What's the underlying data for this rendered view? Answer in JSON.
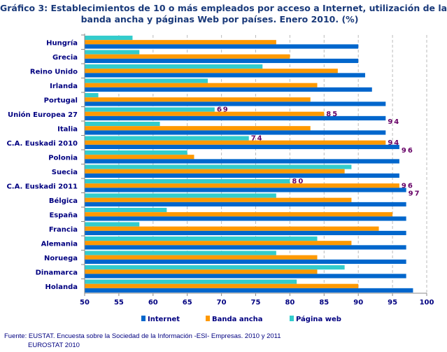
{
  "chart_data": {
    "type": "bar",
    "orientation": "horizontal",
    "title_lines": [
      "Gráfico 3: Establecimientos de 10 o más empleados por acceso a Internet, utilización de la",
      "banda ancha y páginas Web por países. Enero 2010. (%)"
    ],
    "categories": [
      "Hungría",
      "Grecia",
      "Reino Unido",
      "Irlanda",
      "Portugal",
      "Unión Europea 27",
      "Italia",
      "C.A. Euskadi 2010",
      "Polonia",
      "Suecia",
      "C.A. Euskadi 2011",
      "Bélgica",
      "España",
      "Francia",
      "Alemania",
      "Noruega",
      "Dinamarca",
      "Holanda"
    ],
    "series": [
      {
        "name": "Página web",
        "color": "#33cccc",
        "values": [
          57,
          58,
          76,
          68,
          52,
          69,
          61,
          74,
          65,
          89,
          80,
          78,
          62,
          58,
          84,
          78,
          88,
          81
        ]
      },
      {
        "name": "Banda ancha",
        "color": "#ff9900",
        "values": [
          78,
          80,
          87,
          84,
          83,
          85,
          83,
          94,
          66,
          88,
          96,
          89,
          95,
          93,
          89,
          84,
          84,
          90
        ]
      },
      {
        "name": "Internet",
        "color": "#0066cc",
        "values": [
          90,
          90,
          91,
          92,
          94,
          94,
          94,
          96,
          96,
          96,
          97,
          97,
          97,
          97,
          97,
          97,
          97,
          98
        ]
      }
    ],
    "data_labels": [
      {
        "category": "Unión Europea 27",
        "values": [
          "69",
          "85",
          "94"
        ]
      },
      {
        "category": "C.A. Euskadi 2010",
        "values": [
          "74",
          "94",
          "96"
        ]
      },
      {
        "category": "C.A. Euskadi 2011",
        "values": [
          "80",
          "96",
          "97"
        ]
      }
    ],
    "xlim": [
      50,
      100
    ],
    "xticks": [
      "50",
      "55",
      "60",
      "65",
      "70",
      "75",
      "80",
      "85",
      "90",
      "95",
      "100"
    ],
    "grid": "vertical dashed",
    "legend": {
      "placement": "bottom",
      "order": [
        "Internet",
        "Banda ancha",
        "Página web"
      ]
    },
    "colors": {
      "text": "#000080",
      "data_label": "#660066",
      "grid": "#bbbbbb"
    }
  },
  "source": {
    "line1": "Fuente: EUSTAT. Encuesta sobre la Sociedad de la Información -ESI- Empresas. 2010 y 2011",
    "line2": "EUROSTAT 2010"
  }
}
